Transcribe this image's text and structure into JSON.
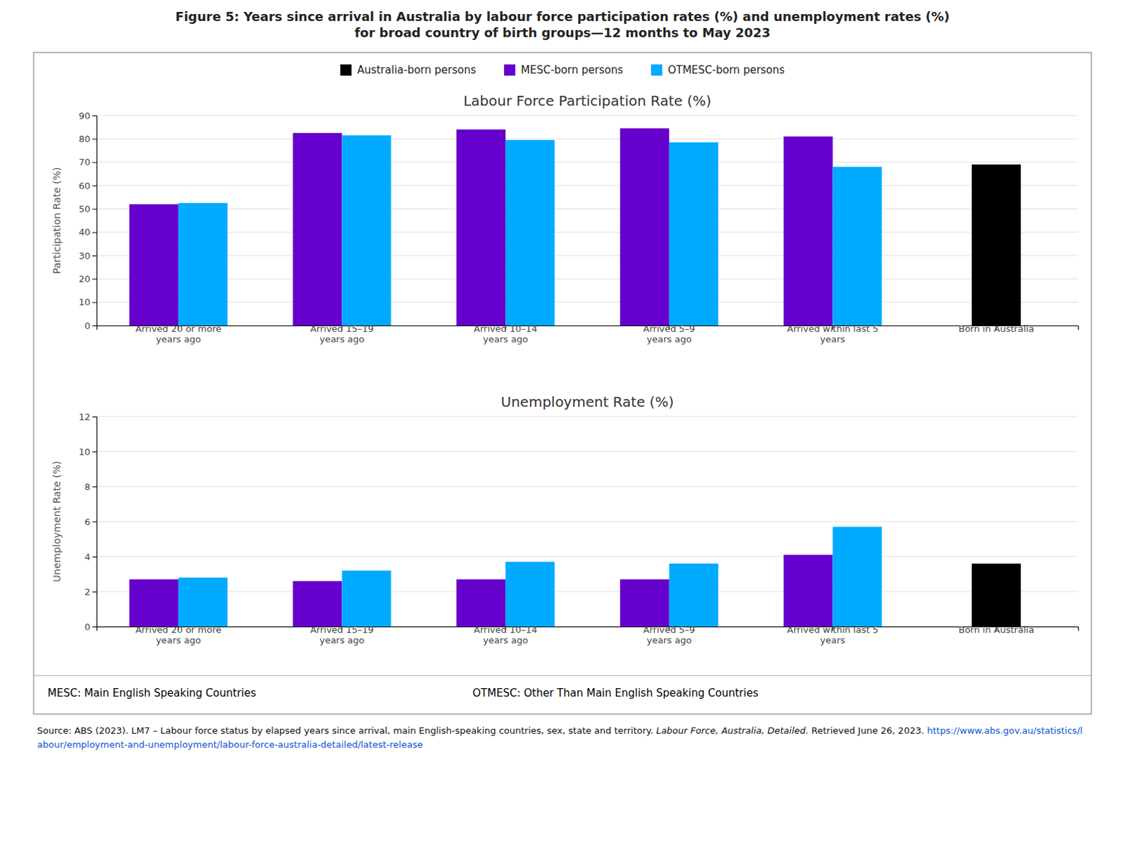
{
  "title": "Figure 5: Years since arrival in Australia by labour force participation rates (%) and unemployment rates (%)\nfor broad country of birth groups—12 months to May 2023",
  "chart_data": [
    {
      "type": "bar",
      "title": "Labour Force Participation Rate (%)",
      "y_label": "Participation Rate (%)",
      "categories": [
        "Arrived 20 or more\nyears ago",
        "Arrived 15–19\nyears ago",
        "Arrived 10–14\nyears ago",
        "Arrived 5–9\nyears ago",
        "Arrived within last 5\nyears",
        "Born in Australia"
      ],
      "series": [
        {
          "name": "Australia-born persons",
          "color": "#000000",
          "values": [
            null,
            null,
            null,
            null,
            null,
            69.0
          ]
        },
        {
          "name": "MESC-born persons",
          "color": "#6600CC",
          "values": [
            52.0,
            82.5,
            84.0,
            84.5,
            81.0,
            null
          ]
        },
        {
          "name": "OTMESC-born persons",
          "color": "#00AAFF",
          "values": [
            52.5,
            81.5,
            79.5,
            78.5,
            68.0,
            null
          ]
        }
      ],
      "ylim": [
        0,
        90
      ],
      "yticks": [
        0,
        10,
        20,
        30,
        40,
        50,
        60,
        70,
        80,
        90
      ],
      "grid": true,
      "legend": "top"
    },
    {
      "type": "bar",
      "title": "Unemployment Rate (%)",
      "y_label": "Unemployment Rate (%)",
      "categories": [
        "Arrived 20 or more\nyears ago",
        "Arrived 15–19\nyears ago",
        "Arrived 10–14\nyears ago",
        "Arrived 5–9\nyears ago",
        "Arrived within last 5\nyears",
        "Born in Australia"
      ],
      "series": [
        {
          "name": "Australia-born persons",
          "color": "#000000",
          "values": [
            null,
            null,
            null,
            null,
            null,
            3.6
          ]
        },
        {
          "name": "MESC-born persons",
          "color": "#6600CC",
          "values": [
            2.7,
            2.6,
            2.7,
            2.7,
            4.1,
            null
          ]
        },
        {
          "name": "OTMESC-born persons",
          "color": "#00AAFF",
          "values": [
            2.8,
            3.2,
            3.7,
            3.6,
            5.7,
            null
          ]
        }
      ],
      "ylim": [
        0,
        12
      ],
      "yticks": [
        0,
        2,
        4,
        6,
        8,
        10,
        12
      ],
      "grid": true
    }
  ],
  "annotations": [
    "MESC: Main English Speaking Countries",
    "OTMESC: Other Than Main English Speaking Countries",
    "Source: ABS (2023). LM7 – Labour force status by elapsed years since arrival, main English-speaking countries, sex, state and territory.",
    "Labour Force, Australia, Detailed.",
    "Retrieved June 26, 2023.",
    "https://www.abs.gov.au/statistics/labour/employment-and-unemployment/labour-force-australia-detailed/latest-release"
  ]
}
